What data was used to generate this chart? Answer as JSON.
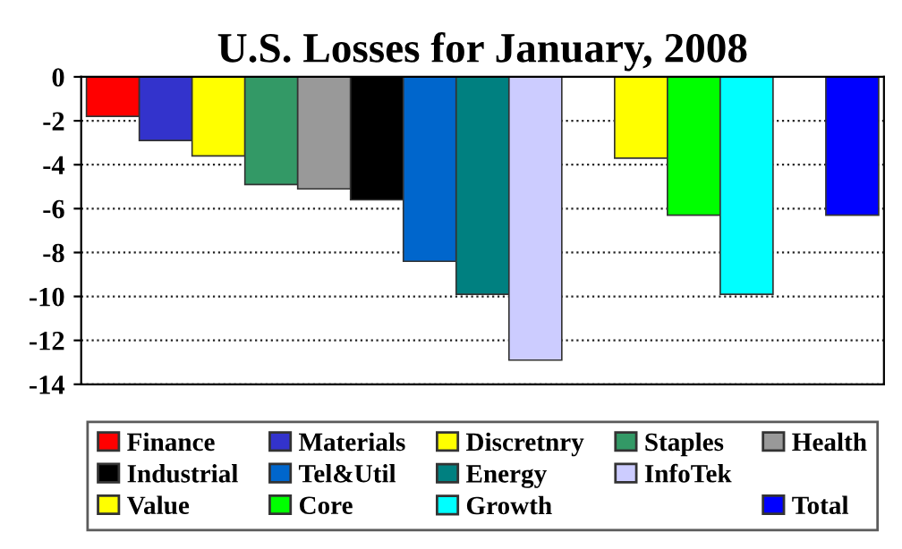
{
  "chart_data": {
    "type": "bar",
    "title": "U.S. Losses for January, 2008",
    "categories": [
      null,
      null,
      null,
      null,
      null,
      null,
      null,
      null,
      null,
      null,
      null,
      null,
      null,
      null,
      null
    ],
    "series": [
      {
        "name": "Finance",
        "color": "#ff0000",
        "values": [
          -1.8,
          null,
          null,
          null,
          null,
          null,
          null,
          null,
          null,
          null,
          null,
          null,
          null,
          null,
          null
        ]
      },
      {
        "name": "Materials",
        "color": "#3333cc",
        "values": [
          null,
          -2.9,
          null,
          null,
          null,
          null,
          null,
          null,
          null,
          null,
          null,
          null,
          null,
          null,
          null
        ]
      },
      {
        "name": "Discretnry",
        "color": "#ffff00",
        "values": [
          null,
          null,
          -3.6,
          null,
          null,
          null,
          null,
          null,
          null,
          null,
          null,
          null,
          null,
          null,
          null
        ]
      },
      {
        "name": "Staples",
        "color": "#339966",
        "values": [
          null,
          null,
          null,
          -4.9,
          null,
          null,
          null,
          null,
          null,
          null,
          null,
          null,
          null,
          null,
          null
        ]
      },
      {
        "name": "Health",
        "color": "#999999",
        "values": [
          null,
          null,
          null,
          null,
          -5.1,
          null,
          null,
          null,
          null,
          null,
          null,
          null,
          null,
          null,
          null
        ]
      },
      {
        "name": "Industrial",
        "color": "#000000",
        "values": [
          null,
          null,
          null,
          null,
          null,
          -5.6,
          null,
          null,
          null,
          null,
          null,
          null,
          null,
          null,
          null
        ]
      },
      {
        "name": "Tel&Util",
        "color": "#0066cc",
        "values": [
          null,
          null,
          null,
          null,
          null,
          null,
          -8.4,
          null,
          null,
          null,
          null,
          null,
          null,
          null,
          null
        ]
      },
      {
        "name": "Energy",
        "color": "#008080",
        "values": [
          null,
          null,
          null,
          null,
          null,
          null,
          null,
          -9.9,
          null,
          null,
          null,
          null,
          null,
          null,
          null
        ]
      },
      {
        "name": "InfoTek",
        "color": "#ccccff",
        "values": [
          null,
          null,
          null,
          null,
          null,
          null,
          null,
          null,
          -12.9,
          null,
          null,
          null,
          null,
          null,
          null
        ]
      },
      {
        "name": "Value",
        "color": "#ffff00",
        "values": [
          null,
          null,
          null,
          null,
          null,
          null,
          null,
          null,
          null,
          null,
          -3.7,
          null,
          null,
          null,
          null
        ]
      },
      {
        "name": "Core",
        "color": "#00ff00",
        "values": [
          null,
          null,
          null,
          null,
          null,
          null,
          null,
          null,
          null,
          null,
          null,
          -6.3,
          null,
          null,
          null
        ]
      },
      {
        "name": "Growth",
        "color": "#00ffff",
        "values": [
          null,
          null,
          null,
          null,
          null,
          null,
          null,
          null,
          null,
          null,
          null,
          null,
          -9.9,
          null,
          null
        ]
      },
      {
        "name": "Total",
        "color": "#0000ff",
        "values": [
          null,
          null,
          null,
          null,
          null,
          null,
          null,
          null,
          null,
          null,
          null,
          null,
          null,
          null,
          -6.3
        ]
      }
    ],
    "ylim": [
      -14,
      0
    ],
    "yticks": [
      -14,
      -12,
      -10,
      -8,
      -6,
      -4,
      -2,
      0
    ],
    "grid": "y",
    "legend": "bottom"
  }
}
